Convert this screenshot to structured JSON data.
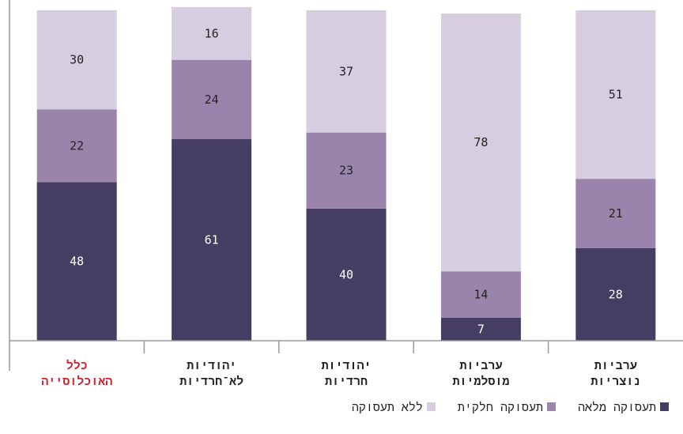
{
  "chart_data": {
    "type": "bar",
    "stacked": true,
    "orientation": "vertical",
    "direction": "rtl",
    "categories": [
      [
        "ערביות",
        "נוצריות"
      ],
      [
        "ערביות",
        "מוסלמיות"
      ],
      [
        "יהודיות",
        "חרדיות"
      ],
      [
        "יהודיות",
        "לא־חרדיות"
      ],
      [
        "כלל",
        "האוכלוסייה"
      ]
    ],
    "highlight_category_index": 4,
    "series": [
      {
        "name": "תעסוקה מלאה",
        "color": "#453d62",
        "label_color": "#ffffff",
        "values": [
          28,
          7,
          40,
          61,
          48
        ]
      },
      {
        "name": "תעסוקה חלקית",
        "color": "#9a84ac",
        "label_color": "#222222",
        "values": [
          21,
          14,
          23,
          24,
          22
        ]
      },
      {
        "name": "ללא תעסוקה",
        "color": "#d6cde0",
        "label_color": "#222222",
        "values": [
          51,
          78,
          37,
          16,
          30
        ]
      }
    ],
    "ylim": [
      0,
      100
    ],
    "grid": false,
    "legend_position": "bottom"
  },
  "colors": {
    "axis": "#9a9a9a",
    "category_text": "#222222",
    "highlight_text": "#d2232a"
  }
}
